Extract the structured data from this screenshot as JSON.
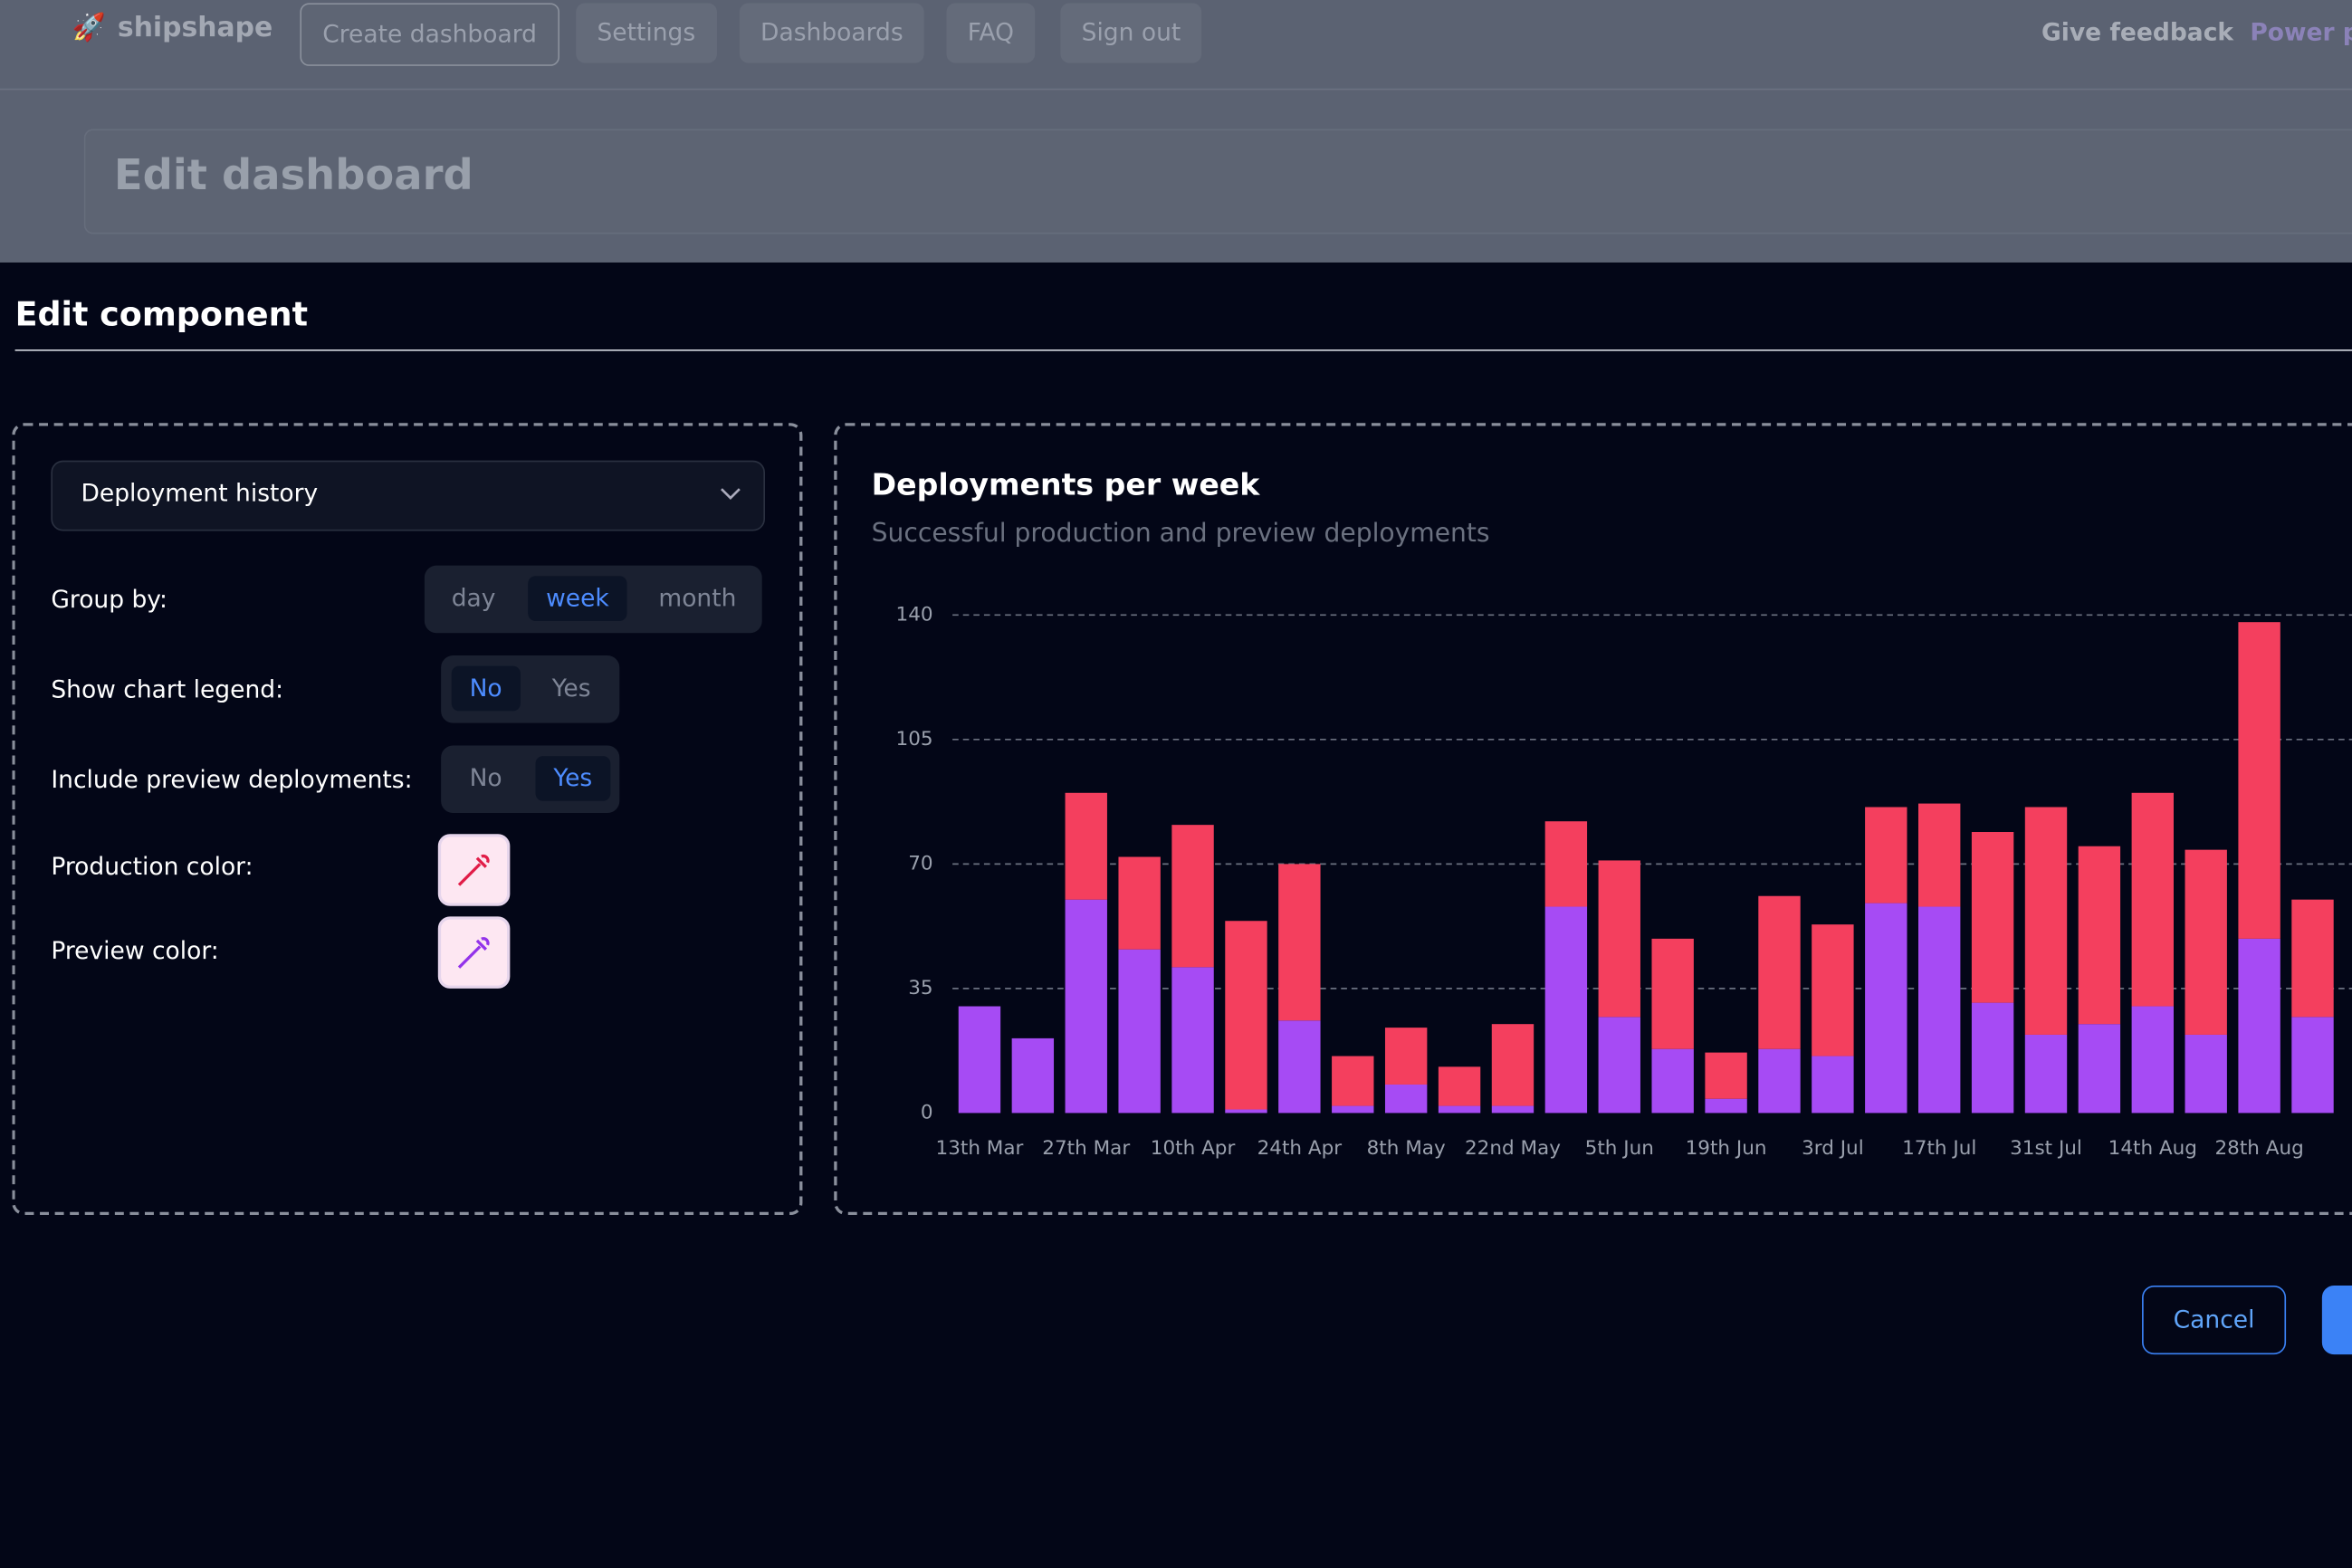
{
  "nav": {
    "brand": "shipshape",
    "links": [
      "Create dashboard",
      "Settings",
      "Dashboards",
      "FAQ",
      "Sign out"
    ],
    "feedback": "Give feedback",
    "power": "Power p"
  },
  "page_title": "Edit dashboard",
  "modal": {
    "title": "Edit component",
    "select": "Deployment history",
    "group_by": {
      "label": "Group by:",
      "options": [
        "day",
        "week",
        "month"
      ]
    },
    "show_legend": {
      "label": "Show chart legend:",
      "options": [
        "No",
        "Yes"
      ]
    },
    "include_preview": {
      "label": "Include preview deployments:",
      "options": [
        "No",
        "Yes"
      ]
    },
    "production_color": "Production color:",
    "preview_color": "Preview color:",
    "cancel": "Cancel"
  },
  "chart_data": {
    "type": "stacked-bar",
    "title": "Deployments per week",
    "subtitle": "Successful production and preview deployments",
    "categories": [
      "13th Mar",
      null,
      "27th Mar",
      null,
      "10th Apr",
      null,
      "24th Apr",
      null,
      "8th May",
      null,
      "22nd May",
      null,
      "5th Jun",
      null,
      "19th Jun",
      null,
      "3rd Jul",
      null,
      "17th Jul",
      null,
      "31st Jul",
      null,
      "14th Aug",
      null,
      "28th Aug",
      null
    ],
    "series": [
      {
        "color": "#a64bf4",
        "values": [
          30,
          21,
          60,
          46,
          41,
          1,
          26,
          2,
          8,
          2,
          2,
          58,
          27,
          18,
          4,
          18,
          16,
          59,
          58,
          31,
          22,
          25,
          30,
          22,
          49,
          27
        ]
      },
      {
        "color": "#f43f5e",
        "values": [
          0,
          0,
          30,
          26,
          40,
          53,
          44,
          14,
          16,
          11,
          23,
          24,
          44,
          31,
          13,
          43,
          37,
          27,
          29,
          48,
          64,
          50,
          60,
          52,
          89,
          33
        ]
      }
    ],
    "ylim": [
      0,
      140
    ],
    "yticks": [
      0,
      35,
      70,
      105,
      140
    ],
    "grid": true
  }
}
